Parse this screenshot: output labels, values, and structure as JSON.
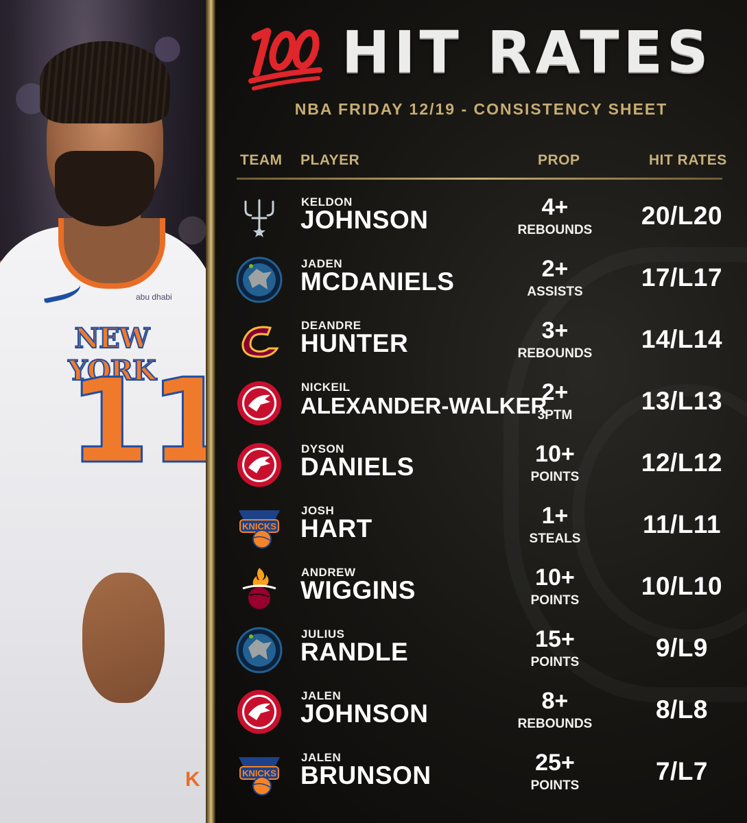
{
  "photo": {
    "jersey_word": "NEW YORK",
    "jersey_number": "11",
    "sponsor": "abu dhabi",
    "shorts_logo": "K"
  },
  "header": {
    "emoji": "💯",
    "title": "HIT RATES",
    "subtitle": "NBA FRIDAY 12/19 - CONSISTENCY SHEET"
  },
  "columns": {
    "team": "TEAM",
    "player": "PLAYER",
    "prop": "PROP",
    "hit_rates": "HIT RATES"
  },
  "colors": {
    "gold": "#c7ad72",
    "background": "#0e0d0b",
    "text": "#ffffff",
    "emoji_red": "#e0252b"
  },
  "rows": [
    {
      "team_icon": "spurs-logo-icon",
      "first": "KELDON",
      "last": "JOHNSON",
      "prop_value": "4+",
      "prop_stat": "REBOUNDS",
      "hit_rate": "20/L20"
    },
    {
      "team_icon": "timberwolves-logo-icon",
      "first": "JADEN",
      "last": "MCDANIELS",
      "prop_value": "2+",
      "prop_stat": "ASSISTS",
      "hit_rate": "17/L17"
    },
    {
      "team_icon": "cavaliers-logo-icon",
      "first": "DEANDRE",
      "last": "HUNTER",
      "prop_value": "3+",
      "prop_stat": "REBOUNDS",
      "hit_rate": "14/L14"
    },
    {
      "team_icon": "hawks-logo-icon",
      "first": "NICKEIL",
      "last": "ALEXANDER-WALKER",
      "prop_value": "2+",
      "prop_stat": "3PTM",
      "hit_rate": "13/L13"
    },
    {
      "team_icon": "hawks-logo-icon",
      "first": "DYSON",
      "last": "DANIELS",
      "prop_value": "10+",
      "prop_stat": "POINTS",
      "hit_rate": "12/L12"
    },
    {
      "team_icon": "knicks-logo-icon",
      "first": "JOSH",
      "last": "HART",
      "prop_value": "1+",
      "prop_stat": "STEALS",
      "hit_rate": "11/L11"
    },
    {
      "team_icon": "heat-logo-icon",
      "first": "ANDREW",
      "last": "WIGGINS",
      "prop_value": "10+",
      "prop_stat": "POINTS",
      "hit_rate": "10/L10"
    },
    {
      "team_icon": "timberwolves-logo-icon",
      "first": "JULIUS",
      "last": "RANDLE",
      "prop_value": "15+",
      "prop_stat": "POINTS",
      "hit_rate": "9/L9"
    },
    {
      "team_icon": "hawks-logo-icon",
      "first": "JALEN",
      "last": "JOHNSON",
      "prop_value": "8+",
      "prop_stat": "REBOUNDS",
      "hit_rate": "8/L8"
    },
    {
      "team_icon": "knicks-logo-icon",
      "first": "JALEN",
      "last": "BRUNSON",
      "prop_value": "25+",
      "prop_stat": "POINTS",
      "hit_rate": "7/L7"
    }
  ]
}
